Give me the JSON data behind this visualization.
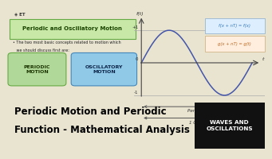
{
  "bg_color": "#e8e4d0",
  "top_bg": "#e8e4d0",
  "bottom_bg": "#ffffff",
  "title_text1": "Periodic Motion and Periodic",
  "title_text2": "Function - Mathematical Analysis",
  "title_fontsize": 8.5,
  "title_color": "#000000",
  "badge_text": "WAVES AND\nOSCILLATIONS",
  "badge_bg": "#111111",
  "badge_fg": "#ffffff",
  "section_title": "Periodic and Oscillatory Motion",
  "section_title_bg": "#c8e8a8",
  "section_title_border": "#66aa44",
  "section_title_color": "#1a4400",
  "bullet_text1": "• The two most basic concepts related to motion which",
  "bullet_text2": "   we should discuss first are:",
  "box1_text": "PERIODIC\nMOTION",
  "box1_bg": "#b0d898",
  "box1_border": "#66aa44",
  "box1_color": "#1a3300",
  "box2_text": "OSCILLATORY\nMOTION",
  "box2_bg": "#90c8e8",
  "box2_border": "#4488bb",
  "box2_color": "#0a2244",
  "sine_color": "#4455aa",
  "axis_color": "#444444",
  "grid_color": "#aaaaaa",
  "ann1_text": "f(x + nT) = f(x)",
  "ann1_color": "#3377bb",
  "ann1_bg": "#ddeeff",
  "ann1_border": "#88aacc",
  "ann2_text": "g(x + nT) = g(t)",
  "ann2_color": "#bb6622",
  "ann2_bg": "#ffeedd",
  "ann2_border": "#ccaa77",
  "period_label": "Period T",
  "cycle_label": "1 Cycle",
  "ft_label": "f(t)",
  "t_label": "t"
}
